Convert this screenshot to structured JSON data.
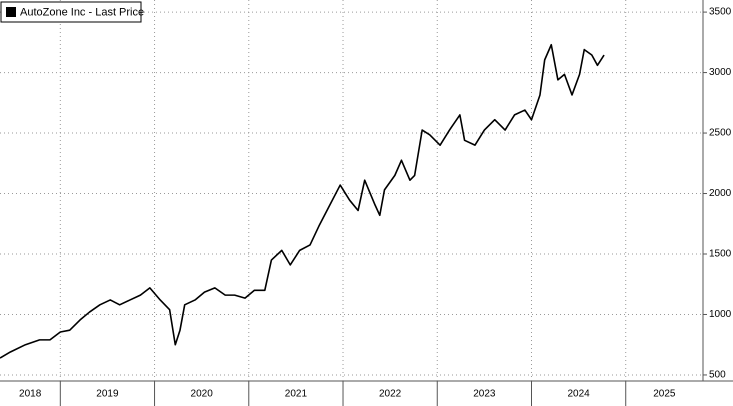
{
  "chart_data": {
    "type": "line",
    "legend": "AutoZone Inc - Last Price",
    "series": [
      {
        "name": "AutoZone Inc - Last Price",
        "color": "#000000",
        "x": [
          2018.36,
          2018.47,
          2018.63,
          2018.78,
          2018.89,
          2019.0,
          2019.1,
          2019.21,
          2019.31,
          2019.42,
          2019.53,
          2019.63,
          2019.74,
          2019.85,
          2019.95,
          2020.06,
          2020.16,
          2020.22,
          2020.27,
          2020.32,
          2020.43,
          2020.53,
          2020.64,
          2020.75,
          2020.85,
          2020.96,
          2021.06,
          2021.17,
          2021.24,
          2021.35,
          2021.44,
          2021.54,
          2021.65,
          2021.75,
          2021.86,
          2021.97,
          2022.07,
          2022.16,
          2022.23,
          2022.34,
          2022.39,
          2022.44,
          2022.55,
          2022.62,
          2022.71,
          2022.76,
          2022.84,
          2022.92,
          2023.03,
          2023.13,
          2023.24,
          2023.29,
          2023.4,
          2023.5,
          2023.61,
          2023.72,
          2023.82,
          2023.93,
          2024.0,
          2024.09,
          2024.14,
          2024.21,
          2024.28,
          2024.35,
          2024.43,
          2024.51,
          2024.56,
          2024.64,
          2024.7,
          2024.77
        ],
        "values": [
          640,
          690,
          750,
          790,
          790,
          855,
          870,
          955,
          1020,
          1080,
          1120,
          1080,
          1120,
          1160,
          1220,
          1120,
          1040,
          750,
          870,
          1080,
          1120,
          1185,
          1220,
          1160,
          1160,
          1135,
          1200,
          1200,
          1450,
          1530,
          1410,
          1530,
          1575,
          1740,
          1905,
          2070,
          1945,
          1860,
          2110,
          1905,
          1820,
          2030,
          2150,
          2275,
          2110,
          2150,
          2525,
          2485,
          2400,
          2525,
          2650,
          2440,
          2400,
          2525,
          2610,
          2525,
          2650,
          2690,
          2610,
          2815,
          3105,
          3230,
          2940,
          2985,
          2815,
          2985,
          3190,
          3145,
          3060,
          3145
        ]
      }
    ],
    "xlim": [
      2018.36,
      2025.82
    ],
    "xticks": [
      2019,
      2020,
      2021,
      2022,
      2023,
      2024,
      2025
    ],
    "year_labels": [
      2018,
      2019,
      2020,
      2021,
      2022,
      2023,
      2024,
      2025
    ],
    "ylim": [
      450,
      3600
    ],
    "yticks": [
      500,
      1000,
      1500,
      2000,
      2500,
      3000,
      3500
    ],
    "grid": true
  }
}
